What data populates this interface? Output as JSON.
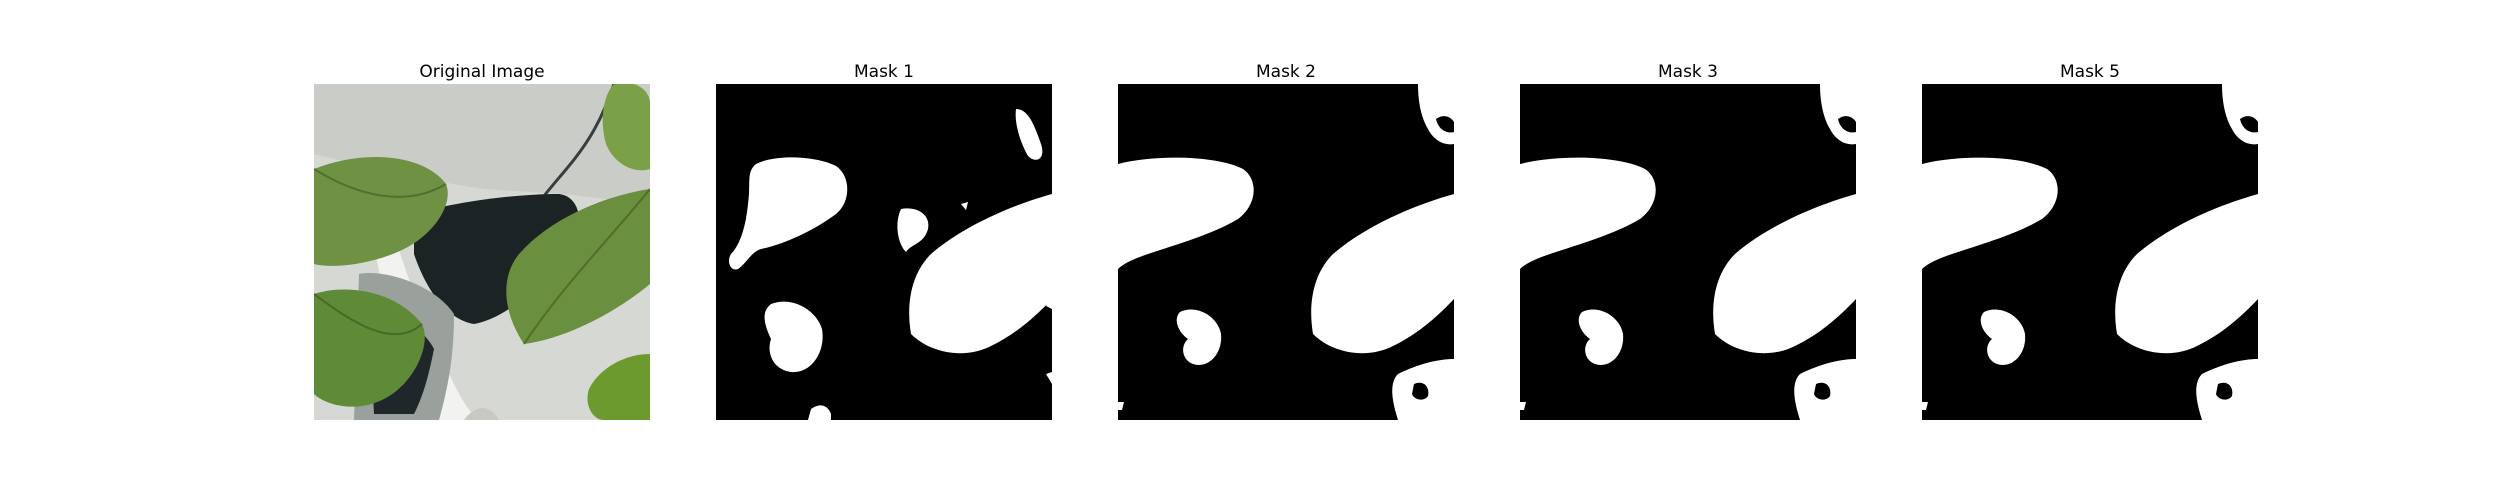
{
  "figure": {
    "panels": [
      {
        "title": "Original Image"
      },
      {
        "title": "Mask 1"
      },
      {
        "title": "Mask 2"
      },
      {
        "title": "Mask 3"
      },
      {
        "title": "Mask 5"
      }
    ]
  },
  "colors": {
    "mask_background": "#000000",
    "mask_foreground": "#ffffff",
    "leaf_green": "#6a8f3e",
    "leaf_dark": "#4f6e2c",
    "wall": "#d9dcd6",
    "shadow": "#1f2426"
  }
}
